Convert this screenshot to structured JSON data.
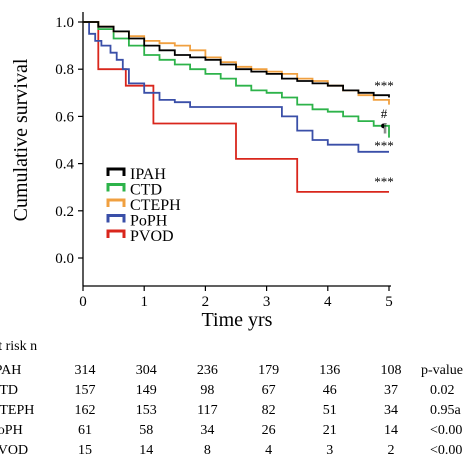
{
  "chart_data": {
    "type": "line",
    "subtype": "kaplan-meier step survival curves",
    "xlabel": "Time yrs",
    "ylabel": "Cumulative survival",
    "xlim": [
      0,
      5
    ],
    "ylim": [
      0,
      1.0
    ],
    "x_ticks": [
      "0",
      "1",
      "2",
      "3",
      "4",
      "5"
    ],
    "y_ticks": [
      "0.0",
      "0.2",
      "0.4",
      "0.6",
      "0.8",
      "1.0"
    ],
    "grid": false,
    "legend_position": "lower-left",
    "series": [
      {
        "name": "IPAH",
        "color": "#000000",
        "end_label": "***",
        "x": [
          0,
          0.25,
          0.5,
          0.75,
          1.0,
          1.25,
          1.5,
          1.75,
          2.0,
          2.25,
          2.5,
          2.75,
          3.0,
          3.25,
          3.5,
          3.75,
          4.0,
          4.25,
          4.5,
          4.75,
          5.0
        ],
        "y": [
          1.0,
          0.98,
          0.96,
          0.93,
          0.9,
          0.88,
          0.86,
          0.85,
          0.84,
          0.82,
          0.8,
          0.79,
          0.78,
          0.76,
          0.75,
          0.74,
          0.73,
          0.71,
          0.7,
          0.69,
          0.68
        ]
      },
      {
        "name": "CTD",
        "color": "#2db34a",
        "end_label": "¶",
        "x": [
          0,
          0.25,
          0.5,
          0.75,
          1.0,
          1.25,
          1.5,
          1.75,
          2.0,
          2.25,
          2.5,
          2.75,
          3.0,
          3.25,
          3.5,
          3.75,
          4.0,
          4.25,
          4.5,
          4.75,
          5.0
        ],
        "y": [
          1.0,
          0.97,
          0.93,
          0.9,
          0.86,
          0.84,
          0.82,
          0.8,
          0.78,
          0.76,
          0.73,
          0.71,
          0.7,
          0.68,
          0.65,
          0.63,
          0.62,
          0.6,
          0.58,
          0.56,
          0.51
        ]
      },
      {
        "name": "CTEPH",
        "color": "#f0a040",
        "end_label": "#",
        "x": [
          0,
          0.25,
          0.5,
          0.75,
          1.0,
          1.25,
          1.5,
          1.75,
          2.0,
          2.25,
          2.5,
          2.75,
          3.0,
          3.25,
          3.5,
          3.75,
          4.0,
          4.25,
          4.5,
          4.75,
          5.0
        ],
        "y": [
          1.0,
          0.98,
          0.96,
          0.94,
          0.92,
          0.91,
          0.9,
          0.88,
          0.85,
          0.83,
          0.81,
          0.8,
          0.79,
          0.78,
          0.76,
          0.75,
          0.73,
          0.71,
          0.69,
          0.67,
          0.65
        ]
      },
      {
        "name": "PoPH",
        "color": "#3a4fa8",
        "end_label": "***",
        "x": [
          0,
          0.1,
          0.2,
          0.3,
          0.45,
          0.55,
          0.65,
          0.75,
          1.0,
          1.25,
          1.5,
          1.75,
          2.0,
          2.5,
          3.0,
          3.25,
          3.5,
          3.75,
          4.0,
          4.5,
          5.0
        ],
        "y": [
          1.0,
          0.95,
          0.92,
          0.9,
          0.87,
          0.84,
          0.8,
          0.74,
          0.7,
          0.67,
          0.66,
          0.64,
          0.64,
          0.64,
          0.64,
          0.6,
          0.54,
          0.5,
          0.48,
          0.45,
          0.45
        ]
      },
      {
        "name": "PVOD",
        "color": "#d9261c",
        "end_label": "***",
        "x": [
          0,
          0.25,
          0.7,
          1.15,
          2.5,
          3.5,
          5.0
        ],
        "y": [
          1.0,
          0.8,
          0.73,
          0.57,
          0.42,
          0.28,
          0.28
        ]
      }
    ]
  },
  "risk_table": {
    "header": "at risk n",
    "pvalue_header": "p-value",
    "rows": [
      {
        "label": "IPAH",
        "counts": [
          "314",
          "304",
          "236",
          "179",
          "136",
          "108"
        ],
        "pvalue": ""
      },
      {
        "label": "CTD",
        "counts": [
          "157",
          "149",
          "98",
          "67",
          "46",
          "37"
        ],
        "pvalue": "0.02"
      },
      {
        "label": "CTEPH",
        "counts": [
          "162",
          "153",
          "117",
          "82",
          "51",
          "34"
        ],
        "pvalue": "0.95a"
      },
      {
        "label": "PoPH",
        "counts": [
          "61",
          "58",
          "34",
          "26",
          "21",
          "14"
        ],
        "pvalue": "<0.00"
      },
      {
        "label": "PVOD",
        "counts": [
          "15",
          "14",
          "8",
          "4",
          "3",
          "2"
        ],
        "pvalue": "<0.00"
      }
    ]
  }
}
